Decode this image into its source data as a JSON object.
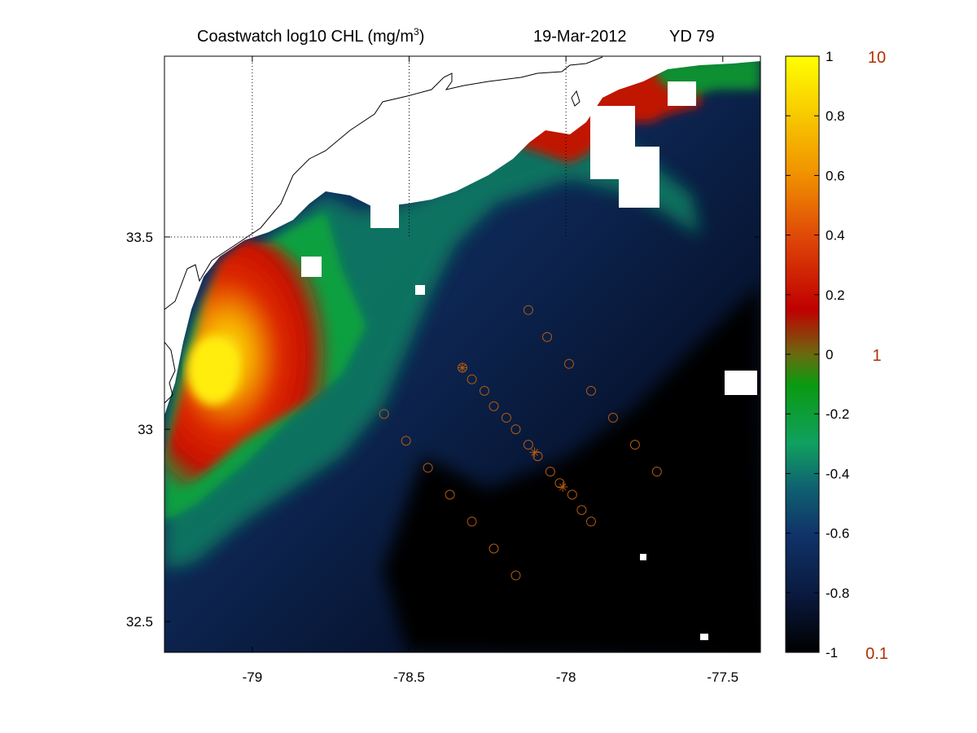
{
  "title": {
    "product": "Coastwatch  log10  CHL (mg/m",
    "product_superscript": "3",
    "product_suffix": ")",
    "date": "19-Mar-2012",
    "yearday": "YD 79"
  },
  "map": {
    "lon_range": [
      -79.28,
      -77.38
    ],
    "lat_range": [
      32.42,
      33.97
    ],
    "x_ticks": [
      {
        "value": -79,
        "label": "-79"
      },
      {
        "value": -78.5,
        "label": "-78.5"
      },
      {
        "value": -78,
        "label": "-78"
      },
      {
        "value": -77.5,
        "label": "-77.5"
      }
    ],
    "y_ticks": [
      {
        "value": 33.5,
        "label": "33.5"
      },
      {
        "value": 33,
        "label": "33"
      },
      {
        "value": 32.5,
        "label": "32.5"
      }
    ],
    "gridlines": {
      "lon": [
        -79,
        -78.5,
        -78
      ],
      "lat": [
        33.5
      ]
    },
    "colors": {
      "land": "#ffffff",
      "coastline": "#000000",
      "station_marker": "#b05a10"
    },
    "stations": [
      {
        "lon": -78.12,
        "lat": 33.31
      },
      {
        "lon": -78.06,
        "lat": 33.24
      },
      {
        "lon": -77.99,
        "lat": 33.17
      },
      {
        "lon": -77.92,
        "lat": 33.1
      },
      {
        "lon": -77.85,
        "lat": 33.03
      },
      {
        "lon": -77.78,
        "lat": 32.96
      },
      {
        "lon": -77.71,
        "lat": 32.89
      },
      {
        "lon": -78.33,
        "lat": 33.16
      },
      {
        "lon": -78.3,
        "lat": 33.13
      },
      {
        "lon": -78.26,
        "lat": 33.1
      },
      {
        "lon": -78.23,
        "lat": 33.06
      },
      {
        "lon": -78.19,
        "lat": 33.03
      },
      {
        "lon": -78.16,
        "lat": 33.0
      },
      {
        "lon": -78.12,
        "lat": 32.96
      },
      {
        "lon": -78.09,
        "lat": 32.93
      },
      {
        "lon": -78.05,
        "lat": 32.89
      },
      {
        "lon": -78.02,
        "lat": 32.86
      },
      {
        "lon": -77.98,
        "lat": 32.83
      },
      {
        "lon": -77.95,
        "lat": 32.79
      },
      {
        "lon": -77.92,
        "lat": 32.76
      },
      {
        "lon": -78.58,
        "lat": 33.04
      },
      {
        "lon": -78.51,
        "lat": 32.97
      },
      {
        "lon": -78.44,
        "lat": 32.9
      },
      {
        "lon": -78.37,
        "lat": 32.83
      },
      {
        "lon": -78.3,
        "lat": 32.76
      },
      {
        "lon": -78.23,
        "lat": 32.69
      },
      {
        "lon": -78.16,
        "lat": 32.62
      }
    ],
    "star_stations": [
      {
        "lon": -78.33,
        "lat": 33.16
      },
      {
        "lon": -78.1,
        "lat": 32.94
      },
      {
        "lon": -78.01,
        "lat": 32.85
      }
    ]
  },
  "colorbar": {
    "range": [
      -1,
      1
    ],
    "ticks": [
      {
        "value": 1,
        "label": "1"
      },
      {
        "value": 0.8,
        "label": "0.8"
      },
      {
        "value": 0.6,
        "label": "0.6"
      },
      {
        "value": 0.4,
        "label": "0.4"
      },
      {
        "value": 0.2,
        "label": "0.2"
      },
      {
        "value": 0,
        "label": "0"
      },
      {
        "value": -0.2,
        "label": "-0.2"
      },
      {
        "value": -0.4,
        "label": "-0.4"
      },
      {
        "value": -0.6,
        "label": "-0.6"
      },
      {
        "value": -0.8,
        "label": "-0.8"
      },
      {
        "value": -1,
        "label": "-1"
      }
    ],
    "secondary_labels": [
      {
        "value": 1,
        "label": "10"
      },
      {
        "value": 0,
        "label": "1"
      },
      {
        "value": -1,
        "label": "0.1"
      }
    ],
    "secondary_color": "#b03000",
    "stops": [
      {
        "value": -1.0,
        "color": "#000000"
      },
      {
        "value": -0.8,
        "color": "#0a1a40"
      },
      {
        "value": -0.6,
        "color": "#10346a"
      },
      {
        "value": -0.45,
        "color": "#0f6070"
      },
      {
        "value": -0.3,
        "color": "#10a060"
      },
      {
        "value": -0.1,
        "color": "#0a9a10"
      },
      {
        "value": 0.0,
        "color": "#6a6a10"
      },
      {
        "value": 0.15,
        "color": "#c00000"
      },
      {
        "value": 0.4,
        "color": "#e04a08"
      },
      {
        "value": 0.6,
        "color": "#f09000"
      },
      {
        "value": 0.8,
        "color": "#f8c800"
      },
      {
        "value": 1.0,
        "color": "#ffff00"
      }
    ]
  }
}
